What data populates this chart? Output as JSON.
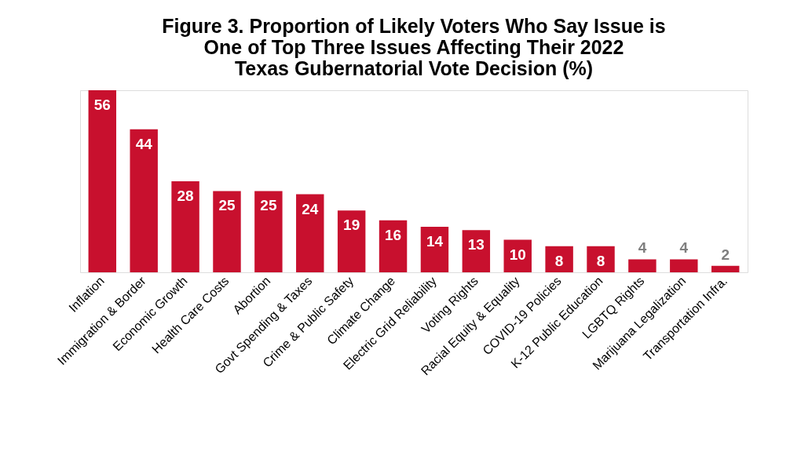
{
  "chart_data": {
    "type": "bar",
    "title": [
      "Figure 3. Proportion of Likely Voters Who Say Issue is",
      "One of Top Three Issues Affecting Their 2022",
      "Texas Gubernatorial Vote Decision (%)"
    ],
    "categories": [
      "Inflation",
      "Immigration & Border",
      "Economic Growth",
      "Health Care Costs",
      "Abortion",
      "Govt Spending & Taxes",
      "Crime & Public Safety",
      "Climate Change",
      "Electric Grid Reliability",
      "Voting Rights",
      "Racial Equity & Equality",
      "COVID-19 Policies",
      "K-12 Public Education",
      "LGBTQ Rights",
      "Marijuana Legalization",
      "Transportation Infra."
    ],
    "values": [
      56,
      44,
      28,
      25,
      25,
      24,
      19,
      16,
      14,
      13,
      10,
      8,
      8,
      4,
      4,
      2
    ],
    "color": "#c8102e",
    "data_labels": true
  }
}
